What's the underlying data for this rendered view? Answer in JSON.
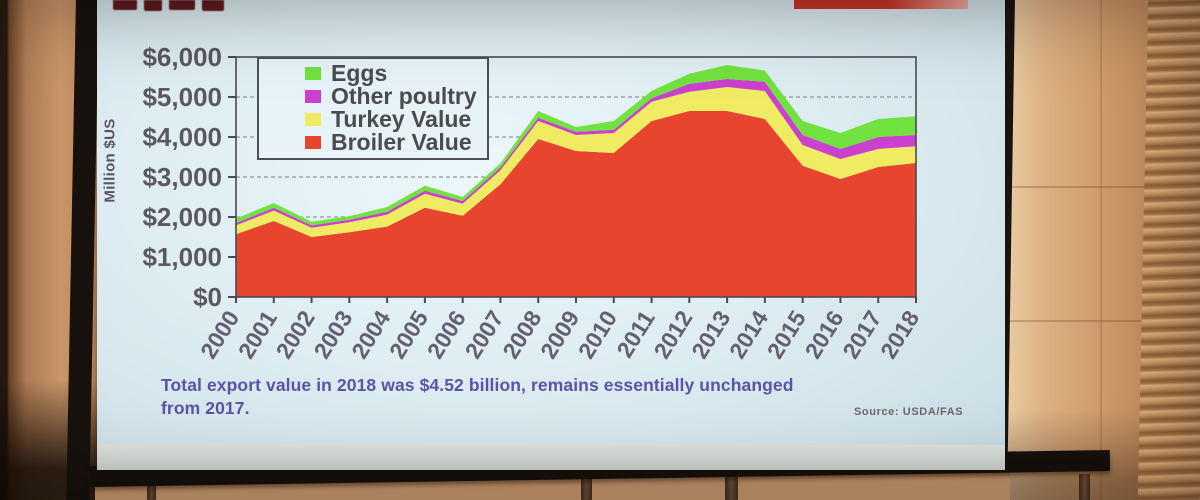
{
  "slide": {
    "caption_lines": [
      "Total export value in 2018 was $4.52 billion, remains essentially unchanged",
      "from 2017."
    ],
    "caption_color": "#5b54a6",
    "source": "Source: USDA/FAS",
    "background_color": "#ddedf2"
  },
  "chart_data": {
    "type": "area",
    "stacked": true,
    "title": "",
    "xlabel": "",
    "ylabel": "Million $US",
    "ylim": [
      0,
      6000
    ],
    "y_tick_step": 1000,
    "y_tick_labels": [
      "$0",
      "$1,000",
      "$2,000",
      "$3,000",
      "$4,000",
      "$5,000",
      "$6,000"
    ],
    "grid": "horizontal-dashed",
    "categories": [
      2000,
      2001,
      2002,
      2003,
      2004,
      2005,
      2006,
      2007,
      2008,
      2009,
      2010,
      2011,
      2012,
      2013,
      2014,
      2015,
      2016,
      2017,
      2018
    ],
    "series": [
      {
        "name": "Broiler Value",
        "color": "#e7452e",
        "values": [
          1570,
          1900,
          1500,
          1620,
          1760,
          2230,
          2030,
          2820,
          3950,
          3650,
          3600,
          4400,
          4650,
          4650,
          4450,
          3280,
          2950,
          3250,
          3350
        ]
      },
      {
        "name": "Turkey Value",
        "color": "#efec63",
        "values": [
          220,
          260,
          230,
          250,
          300,
          350,
          300,
          350,
          450,
          400,
          500,
          480,
          480,
          600,
          700,
          520,
          500,
          450,
          420
        ]
      },
      {
        "name": "Other poultry",
        "color": "#cb41cd",
        "values": [
          60,
          70,
          60,
          60,
          70,
          80,
          70,
          70,
          80,
          80,
          80,
          90,
          200,
          200,
          230,
          250,
          250,
          300,
          280
        ]
      },
      {
        "name": "Eggs",
        "color": "#71e23f",
        "values": [
          110,
          120,
          90,
          90,
          120,
          120,
          100,
          100,
          170,
          120,
          220,
          180,
          250,
          350,
          280,
          350,
          400,
          450,
          470
        ]
      }
    ],
    "legend": {
      "position": "inside-top-left",
      "order": [
        "Eggs",
        "Other poultry",
        "Turkey Value",
        "Broiler Value"
      ]
    }
  }
}
